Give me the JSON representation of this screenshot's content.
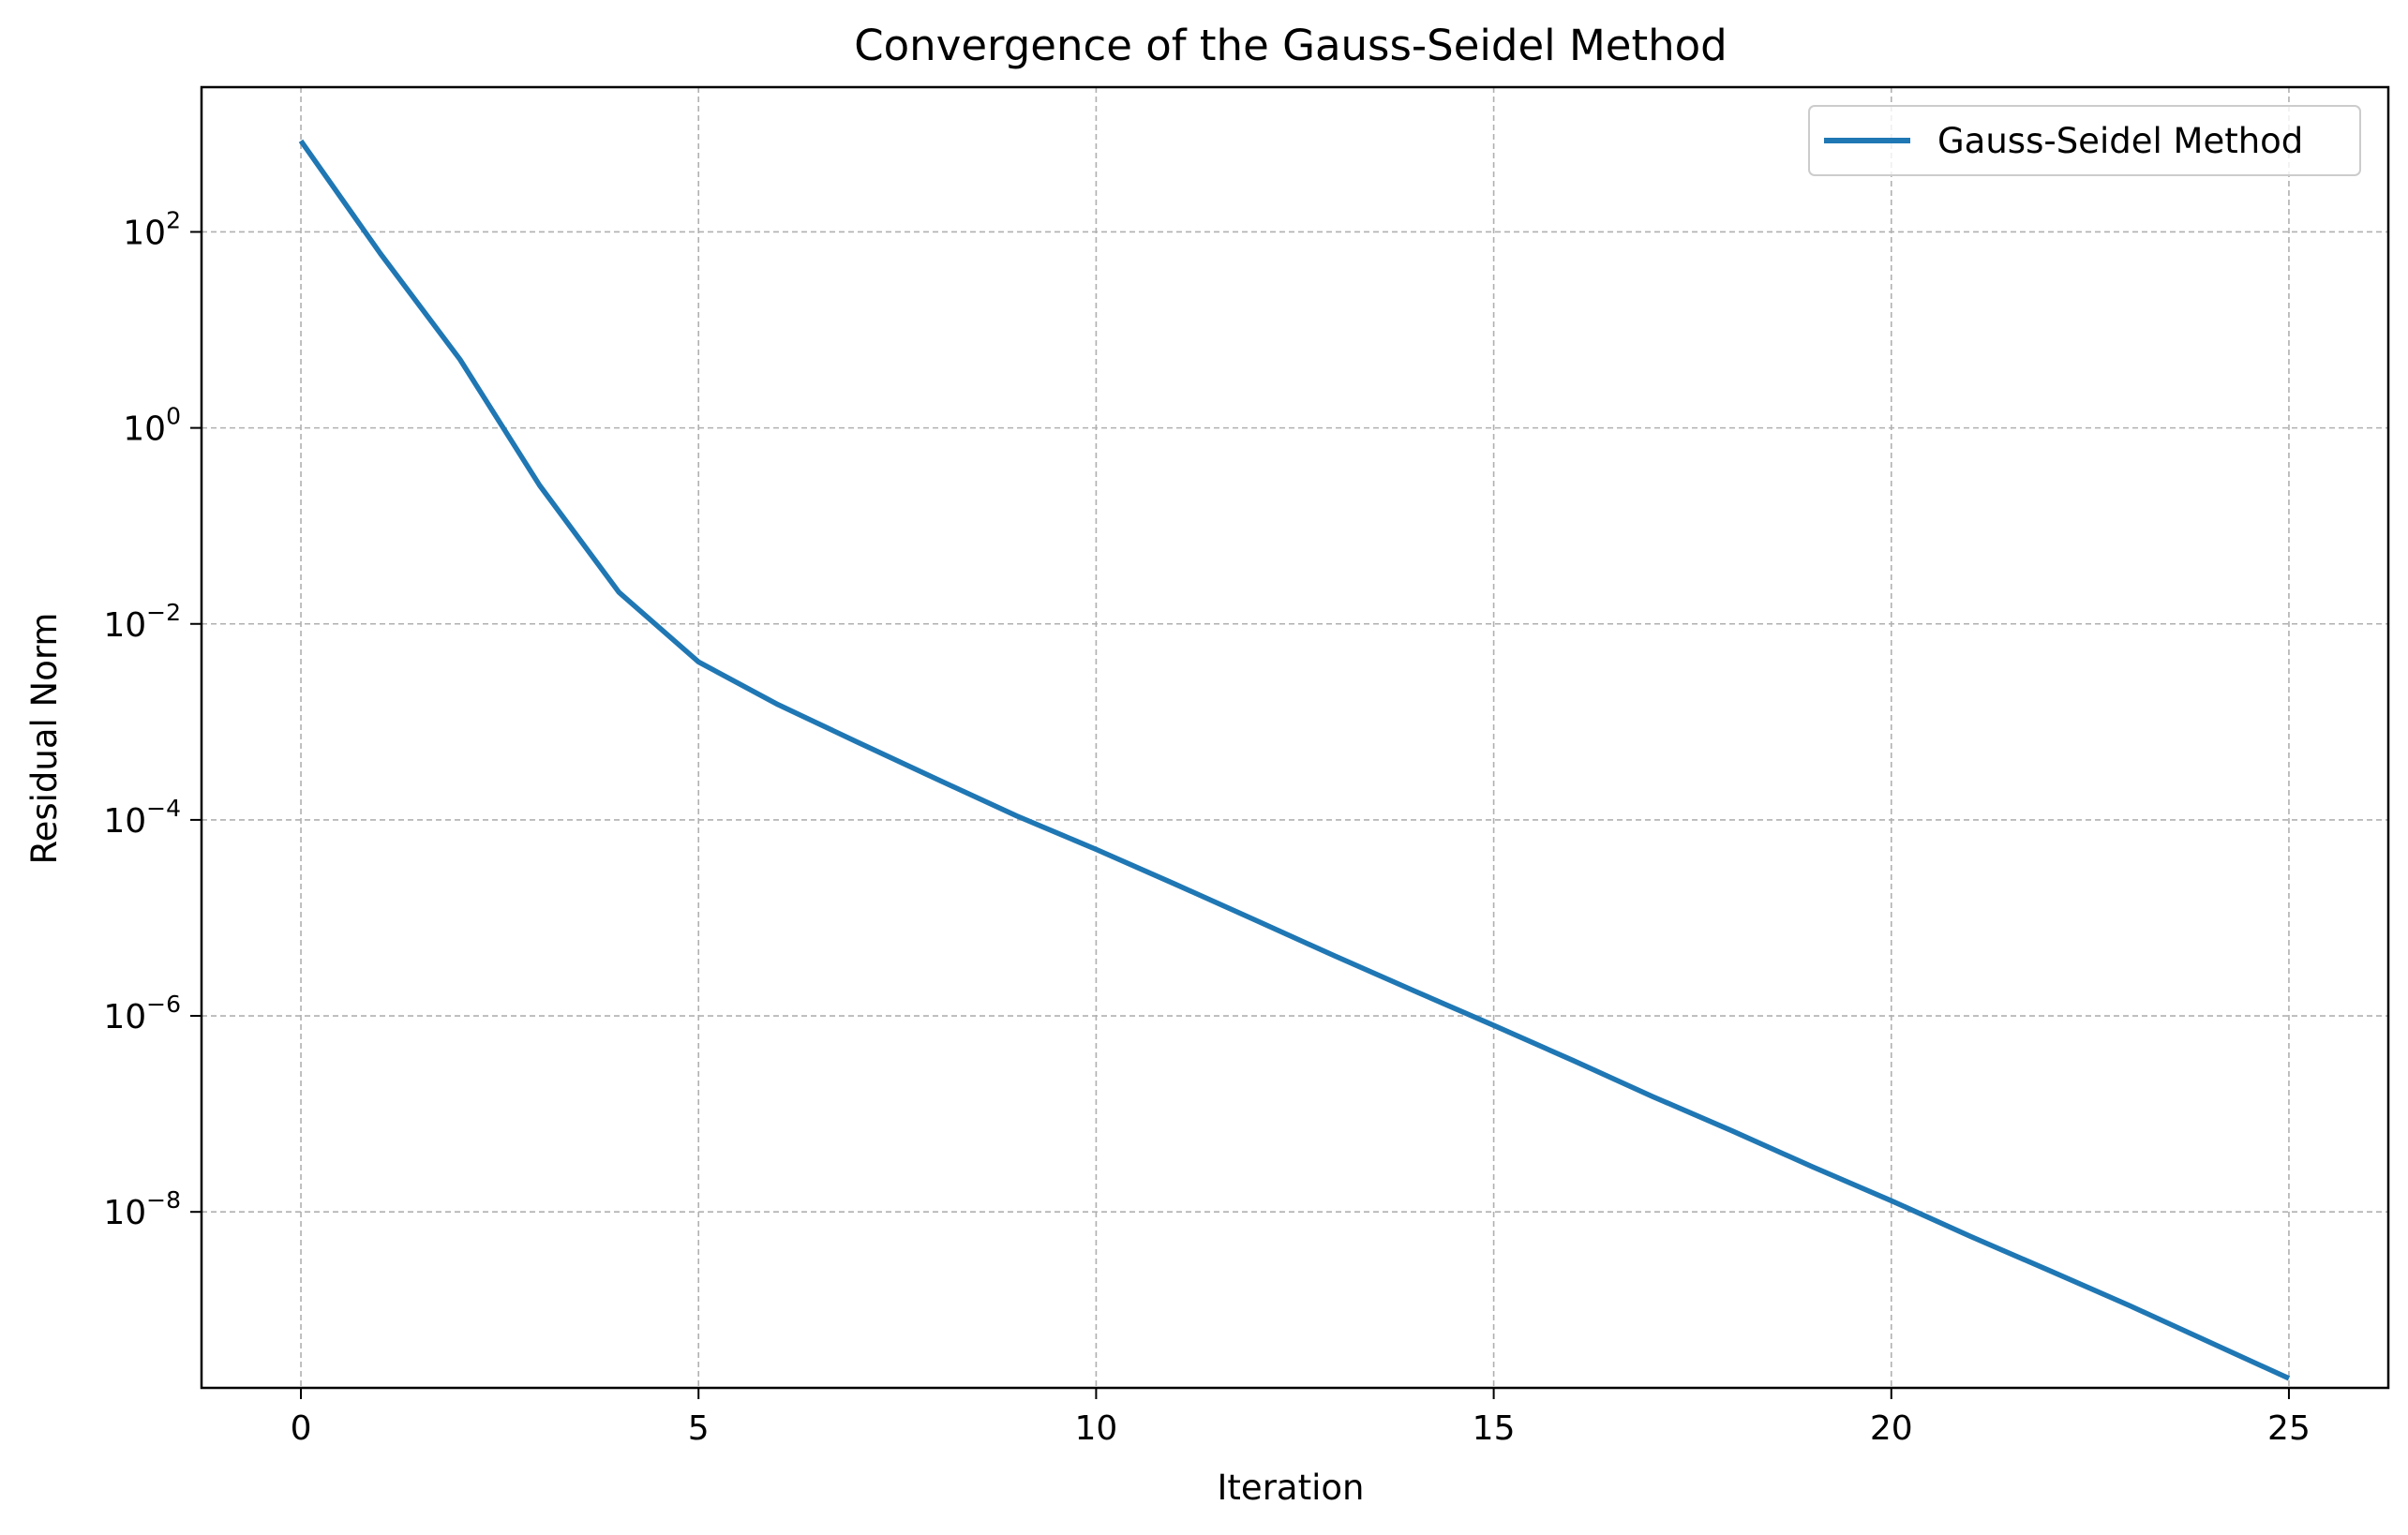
{
  "chart_data": {
    "type": "line",
    "title": "Convergence of the Gauss-Seidel Method",
    "xlabel": "Iteration",
    "ylabel": "Residual Norm",
    "x_scale": "linear",
    "y_scale": "log",
    "xlim": [
      -1.25,
      26.25
    ],
    "ylim": [
      1.6e-10,
      3000
    ],
    "x_ticks": [
      {
        "value": 0,
        "label": "0"
      },
      {
        "value": 5,
        "label": "5"
      },
      {
        "value": 10,
        "label": "10"
      },
      {
        "value": 15,
        "label": "15"
      },
      {
        "value": 20,
        "label": "20"
      },
      {
        "value": 25,
        "label": "25"
      }
    ],
    "y_ticks": [
      {
        "value": 100,
        "base": "10",
        "exp": "2"
      },
      {
        "value": 1,
        "base": "10",
        "exp": "0"
      },
      {
        "value": 0.01,
        "base": "10",
        "exp": "−2"
      },
      {
        "value": 0.0001,
        "base": "10",
        "exp": "−4"
      },
      {
        "value": 1e-06,
        "base": "10",
        "exp": "−6"
      },
      {
        "value": 1e-08,
        "base": "10",
        "exp": "−8"
      }
    ],
    "grid": true,
    "legend_position": "top-right",
    "series": [
      {
        "name": "Gauss-Seidel Method",
        "color": "#1f77b4",
        "x": [
          0,
          1,
          2,
          3,
          4,
          5,
          6,
          7,
          8,
          9,
          10,
          11,
          12,
          13,
          14,
          15,
          16,
          17,
          18,
          19,
          20,
          21,
          22,
          23,
          24,
          25
        ],
        "y": [
          850,
          60,
          5,
          0.26,
          0.021,
          0.0041,
          0.0015,
          0.00062,
          0.00026,
          0.00011,
          5e-05,
          2.2e-05,
          9.5e-06,
          4.1e-06,
          1.8e-06,
          8e-07,
          3.5e-07,
          1.5e-07,
          6.7e-08,
          2.9e-08,
          1.3e-08,
          5.6e-09,
          2.5e-09,
          1.1e-09,
          4.7e-10,
          2e-10
        ]
      }
    ]
  }
}
